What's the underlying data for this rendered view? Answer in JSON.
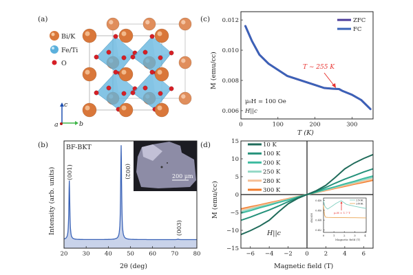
{
  "panel_a": {
    "label": "(a)",
    "legend": [
      {
        "name": "Bi/K",
        "color": "#d9773a"
      },
      {
        "name": "Fe/Ti",
        "color": "#5bb0dc"
      },
      {
        "name": "O",
        "color": "#d61f26"
      }
    ],
    "axes": {
      "a": "a",
      "b": "b",
      "c": "c"
    }
  },
  "panel_b": {
    "label": "(b)",
    "sample": "BF-BKT",
    "scale_bar": "200 μm"
  },
  "panel_c": {
    "label": "(c)",
    "annotation": "T ∼ 255 K",
    "field": "μ₀H = 100 Oe",
    "orientation": "H||c"
  },
  "panel_d": {
    "label": "(d)",
    "orientation": "H||c",
    "inset_annotation": "μ₀H ≈ 1.7 T"
  },
  "chart_data": [
    {
      "id": "b",
      "type": "line",
      "xlabel": "2θ (deg)",
      "ylabel": "Intensity (arb. units)",
      "xlim": [
        20,
        80
      ],
      "ylim": [
        0,
        1
      ],
      "xticks": [
        20,
        30,
        40,
        50,
        60,
        70,
        80
      ],
      "baseline": 0.08,
      "peaks": [
        {
          "label": "(001)",
          "two_theta": 22.4,
          "intensity": 0.63
        },
        {
          "label": "(002)",
          "two_theta": 45.8,
          "intensity": 0.96
        },
        {
          "label": "(003)",
          "two_theta": 71.5,
          "intensity": 0.085
        }
      ],
      "color": "#3a63b8",
      "fill": "#c9d3ea"
    },
    {
      "id": "c",
      "type": "line",
      "xlabel": "T (K)",
      "ylabel": "M (emu/cc)",
      "xlim": [
        0,
        357
      ],
      "ylim": [
        0.00545,
        0.01255
      ],
      "xticks": [
        0,
        100,
        200,
        300
      ],
      "yticks": [
        "0.006",
        "0.008",
        "0.010",
        "0.012"
      ],
      "legend": "top-right",
      "series": [
        {
          "name": "ZFC",
          "color": "#4b3a9a",
          "x": [
            12,
            30,
            50,
            75,
            100,
            125,
            150,
            175,
            200,
            225,
            250,
            265,
            275,
            300,
            325,
            350
          ],
          "y": [
            0.0116,
            0.0106,
            0.0097,
            0.0091,
            0.0087,
            0.0083,
            0.0081,
            0.0079,
            0.0077,
            0.0075,
            0.00745,
            0.00743,
            0.0073,
            0.00705,
            0.0067,
            0.0061
          ]
        },
        {
          "name": "FC",
          "color": "#3a63b8",
          "x": [
            12,
            30,
            50,
            75,
            100,
            125,
            150,
            175,
            200,
            225,
            250,
            265,
            275,
            300,
            325,
            350
          ],
          "y": [
            0.0116,
            0.0106,
            0.0097,
            0.0091,
            0.0087,
            0.0083,
            0.0081,
            0.0079,
            0.0077,
            0.0075,
            0.00745,
            0.00743,
            0.0073,
            0.00705,
            0.0067,
            0.0061
          ]
        }
      ]
    },
    {
      "id": "d",
      "type": "line",
      "xlabel": "Magnetic field (T)",
      "ylabel": "M (emu/cc)",
      "xlim": [
        -7,
        7
      ],
      "ylim": [
        -15,
        15
      ],
      "xticks": [
        -6,
        -4,
        -2,
        0,
        2,
        4,
        6
      ],
      "yticks": [
        -15,
        -10,
        -5,
        0,
        5,
        10,
        15
      ],
      "legend": "top-left",
      "x": [
        -7,
        -6,
        -5,
        -4,
        -3,
        -2,
        -1,
        0,
        1,
        2,
        3,
        4,
        5,
        6,
        7
      ],
      "series": [
        {
          "name": "10 K",
          "color": "#1f6b5a",
          "values": [
            -11.2,
            -10.1,
            -8.8,
            -7.2,
            -4.8,
            -2.6,
            -1.1,
            0,
            1.1,
            2.6,
            4.8,
            7.2,
            8.8,
            10.1,
            11.2
          ]
        },
        {
          "name": "100 K",
          "color": "#24917a",
          "values": [
            -7.2,
            -6.3,
            -5.3,
            -4.3,
            -3.2,
            -2.0,
            -0.9,
            0,
            0.9,
            2.0,
            3.2,
            4.3,
            5.3,
            6.3,
            7.2
          ]
        },
        {
          "name": "200 K",
          "color": "#3dbba0",
          "values": [
            -5.2,
            -4.5,
            -3.7,
            -3.0,
            -2.2,
            -1.5,
            -0.7,
            0,
            0.7,
            1.5,
            2.2,
            3.0,
            3.7,
            4.5,
            5.2
          ]
        },
        {
          "name": "250 K",
          "color": "#94d8c6",
          "values": [
            -4.8,
            -4.1,
            -3.4,
            -2.8,
            -2.1,
            -1.4,
            -0.7,
            0,
            0.7,
            1.4,
            2.1,
            2.8,
            3.4,
            4.1,
            4.8
          ]
        },
        {
          "name": "280 K",
          "color": "#f6bf95",
          "values": [
            -4.3,
            -3.7,
            -3.1,
            -2.5,
            -1.9,
            -1.25,
            -0.6,
            0,
            0.6,
            1.25,
            1.9,
            2.5,
            3.1,
            3.7,
            4.3
          ]
        },
        {
          "name": "300 K",
          "color": "#f07b2a",
          "values": [
            -4.0,
            -3.45,
            -2.9,
            -2.3,
            -1.75,
            -1.15,
            -0.58,
            0,
            0.58,
            1.15,
            1.75,
            2.3,
            2.9,
            3.45,
            4.0
          ]
        }
      ]
    },
    {
      "id": "d-inset",
      "type": "line",
      "xlabel": "Magnetic field (T)",
      "ylabel": "dM/dH",
      "xlim": [
        0,
        4.1
      ],
      "ylim": [
        0.415,
        0.485
      ],
      "xticks": [
        0,
        1,
        2,
        3,
        4
      ],
      "yticks": [
        "0.42",
        "0.44",
        "0.46",
        "0.48"
      ],
      "legend": "top-right",
      "series": [
        {
          "name": "250K",
          "color": "#7fcfc0",
          "x": [
            0,
            0.1,
            0.2,
            0.4,
            0.8,
            1.2,
            1.7,
            2.2,
            3.0,
            4.0,
            4.1
          ],
          "y": [
            0.48,
            0.47,
            0.466,
            0.4625,
            0.468,
            0.474,
            0.4795,
            0.472,
            0.468,
            0.464,
            0.464
          ]
        },
        {
          "name": "280K",
          "color": "#eaa451",
          "x": [
            0,
            0.05,
            0.1,
            0.2,
            0.4,
            1.0,
            2.0,
            3.0,
            4.0,
            4.1
          ],
          "y": [
            0.47,
            0.458,
            0.45,
            0.446,
            0.4455,
            0.4452,
            0.445,
            0.4448,
            0.4446,
            0.4446
          ]
        }
      ]
    }
  ]
}
